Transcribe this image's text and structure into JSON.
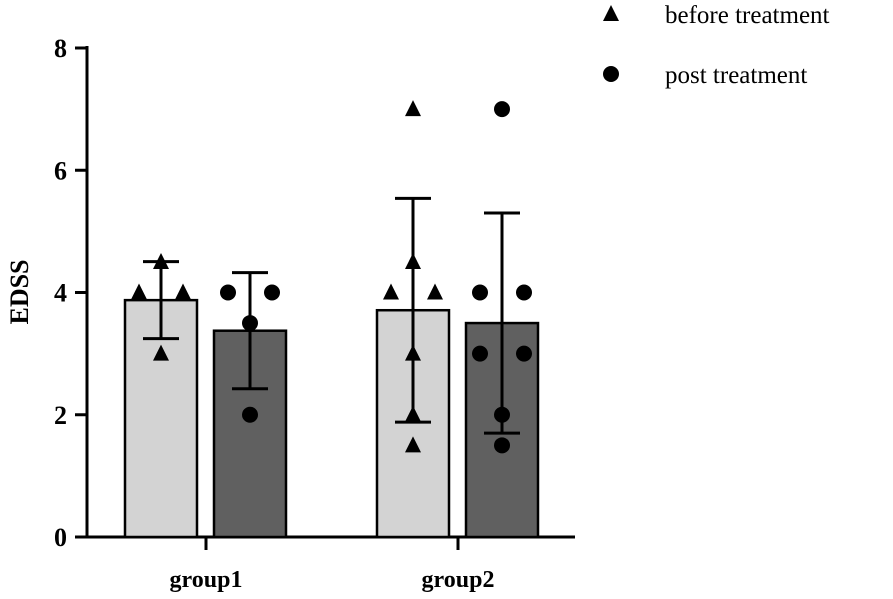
{
  "chart_data": {
    "type": "bar",
    "title": "",
    "xlabel": "",
    "ylabel": "EDSS",
    "ylim": [
      0,
      8
    ],
    "yticks": [
      "0",
      "2",
      "4",
      "6",
      "8"
    ],
    "categories": [
      "group1",
      "group2"
    ],
    "legend_position": "top-right",
    "series": [
      {
        "name": "before treatment",
        "marker": "triangle",
        "color": "#d3d3d3",
        "means": [
          3.875,
          3.71
        ],
        "sd": [
          0.63,
          1.83
        ],
        "points": [
          [
            4.5,
            4,
            4,
            3
          ],
          [
            7,
            4.5,
            4,
            4,
            3,
            2,
            1.5
          ]
        ]
      },
      {
        "name": "post treatment",
        "marker": "circle",
        "color": "#606060",
        "means": [
          3.375,
          3.5
        ],
        "sd": [
          0.95,
          1.8
        ],
        "points": [
          [
            4,
            4,
            3.5,
            2
          ],
          [
            7,
            4,
            4,
            3,
            3,
            2,
            1.5
          ]
        ]
      }
    ]
  }
}
